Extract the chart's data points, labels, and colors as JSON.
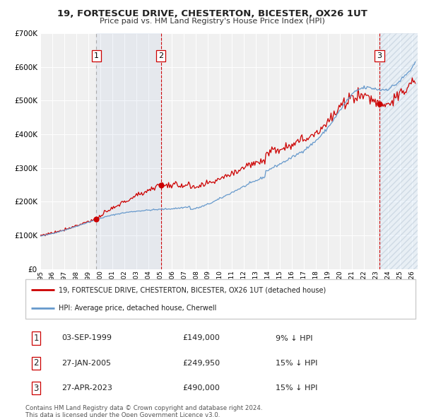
{
  "title": "19, FORTESCUE DRIVE, CHESTERTON, BICESTER, OX26 1UT",
  "subtitle": "Price paid vs. HM Land Registry's House Price Index (HPI)",
  "ylim": [
    0,
    700000
  ],
  "yticks": [
    0,
    100000,
    200000,
    300000,
    400000,
    500000,
    600000,
    700000
  ],
  "ytick_labels": [
    "£0",
    "£100K",
    "£200K",
    "£300K",
    "£400K",
    "£500K",
    "£600K",
    "£700K"
  ],
  "xmin": 1995.0,
  "xmax": 2026.5,
  "sale_dates": [
    1999.67,
    2005.07,
    2023.32
  ],
  "sale_prices": [
    149000,
    249950,
    490000
  ],
  "sale_labels": [
    "1",
    "2",
    "3"
  ],
  "legend_line1": "19, FORTESCUE DRIVE, CHESTERTON, BICESTER, OX26 1UT (detached house)",
  "legend_line2": "HPI: Average price, detached house, Cherwell",
  "table_data": [
    [
      "1",
      "03-SEP-1999",
      "£149,000",
      "9% ↓ HPI"
    ],
    [
      "2",
      "27-JAN-2005",
      "£249,950",
      "15% ↓ HPI"
    ],
    [
      "3",
      "27-APR-2023",
      "£490,000",
      "15% ↓ HPI"
    ]
  ],
  "footnote1": "Contains HM Land Registry data © Crown copyright and database right 2024.",
  "footnote2": "This data is licensed under the Open Government Licence v3.0.",
  "red_line_color": "#cc0000",
  "blue_line_color": "#6699cc",
  "shaded_region1": [
    1999.67,
    2005.07
  ],
  "shaded_region2": [
    2023.32,
    2026.5
  ],
  "background_color": "#ffffff",
  "plot_bg_color": "#f0f0f0"
}
